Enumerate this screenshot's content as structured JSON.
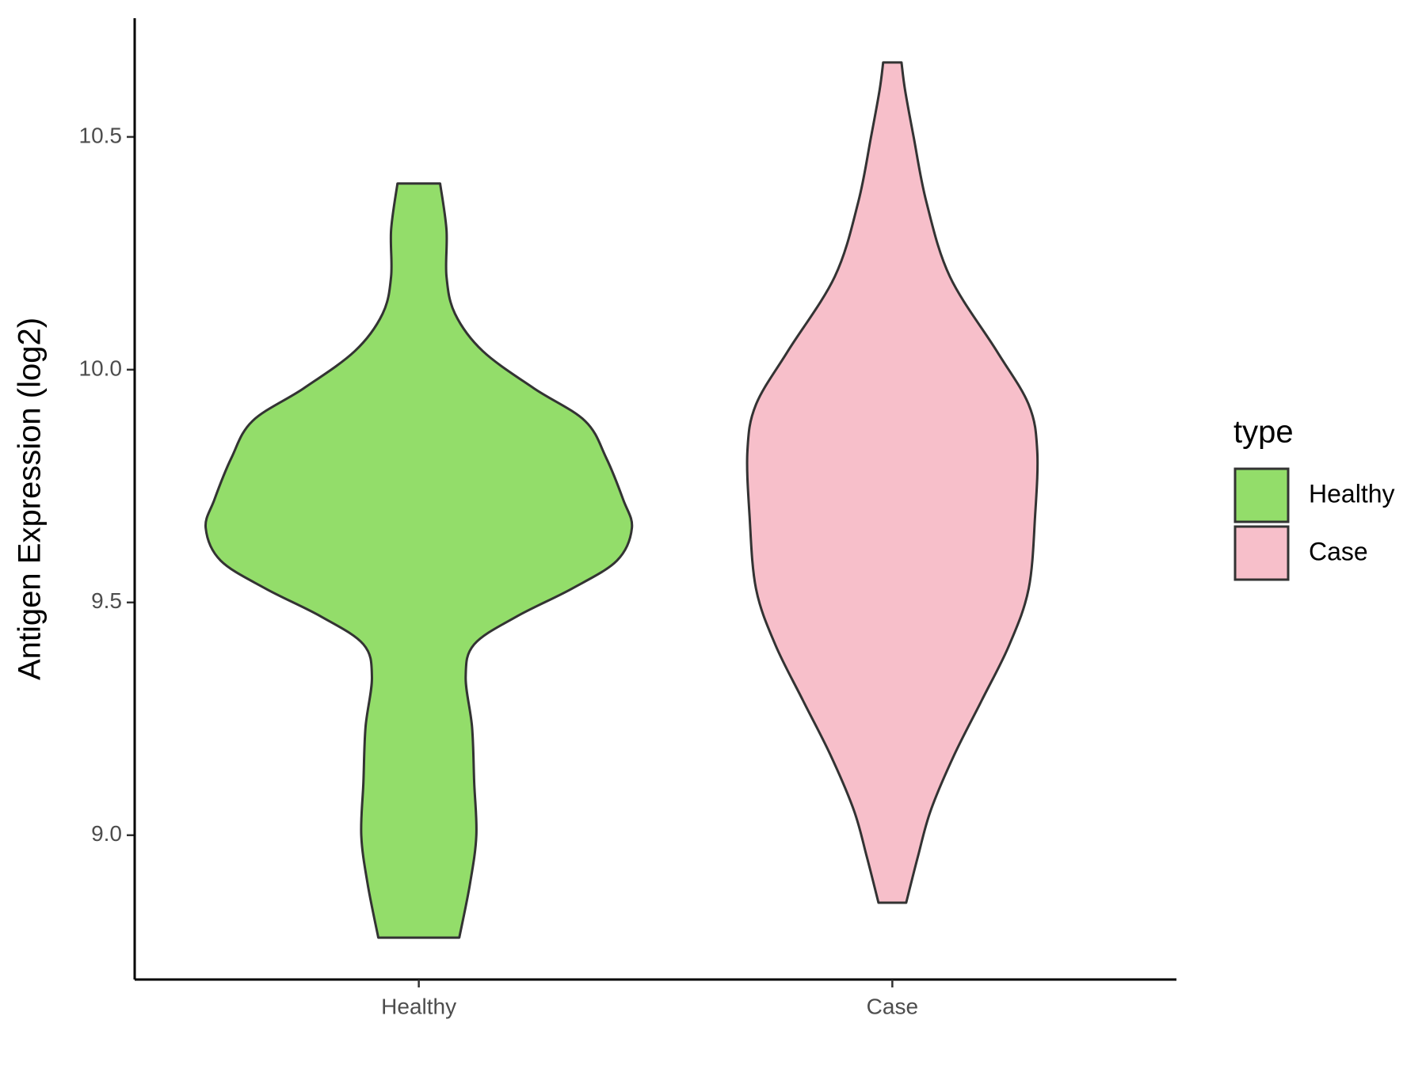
{
  "chart_data": {
    "type": "violin",
    "y_label": "Antigen Expression (log2)",
    "categories": [
      "Healthy",
      "Case"
    ],
    "legend_title": "type",
    "series": [
      {
        "name": "Healthy",
        "color": "#93dd6a",
        "y": [
          8.78,
          8.895,
          9.0,
          9.113,
          9.232,
          9.34,
          9.41,
          9.47,
          9.53,
          9.59,
          9.66,
          9.72,
          9.81,
          9.89,
          9.96,
          10.04,
          10.12,
          10.2,
          10.3,
          10.4
        ],
        "widths": [
          0.19,
          0.24,
          0.27,
          0.26,
          0.25,
          0.22,
          0.26,
          0.46,
          0.72,
          0.93,
          1.0,
          0.96,
          0.88,
          0.78,
          0.54,
          0.3,
          0.17,
          0.13,
          0.13,
          0.1
        ]
      },
      {
        "name": "Case",
        "color": "#f7bfca",
        "y": [
          8.855,
          8.954,
          9.053,
          9.172,
          9.29,
          9.41,
          9.53,
          9.686,
          9.826,
          9.925,
          10.04,
          10.2,
          10.36,
          10.5,
          10.6,
          10.66
        ],
        "widths": [
          0.065,
          0.12,
          0.18,
          0.29,
          0.42,
          0.55,
          0.64,
          0.67,
          0.68,
          0.64,
          0.49,
          0.27,
          0.16,
          0.1,
          0.06,
          0.043
        ]
      }
    ],
    "ylim": [
      8.69,
      10.755
    ],
    "yticks": [
      {
        "value": 9,
        "label": "9.0"
      },
      9.5,
      {
        "value": 10,
        "label": "10.0"
      },
      10.5
    ]
  }
}
